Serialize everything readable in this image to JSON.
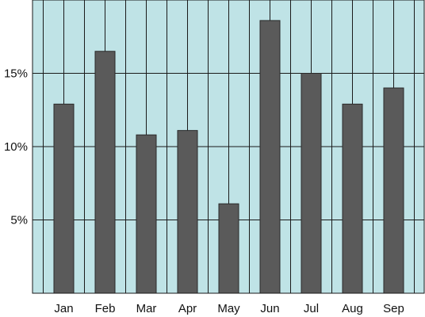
{
  "chart_data": {
    "type": "bar",
    "title": "",
    "xlabel": "",
    "ylabel": "",
    "categories": [
      "Jan",
      "Feb",
      "Mar",
      "Apr",
      "May",
      "Jun",
      "Jul",
      "Aug",
      "Sep"
    ],
    "values": [
      12.9,
      16.5,
      10.8,
      11.1,
      6.1,
      18.6,
      15.0,
      12.9,
      14.0
    ],
    "ylim": [
      0,
      20
    ],
    "yticks": [
      5,
      10,
      15
    ],
    "ytick_labels": [
      "5%",
      "10%",
      "15%"
    ],
    "grid": true,
    "colors": {
      "plot_background": "#bfe3e6",
      "bar": "#5a5a5a",
      "bar_edge": "#2a2a2a",
      "grid": "#1a1a1a"
    }
  }
}
